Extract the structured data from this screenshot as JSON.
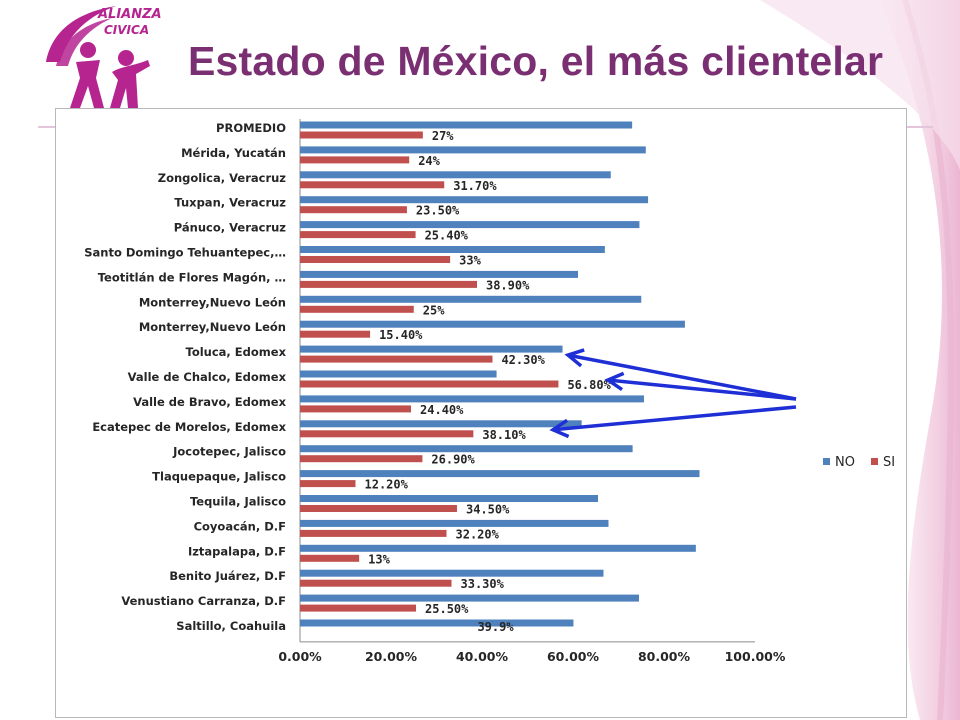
{
  "slide": {
    "title": "Estado de México, el más clientelar",
    "logo_text_line1": "ALIANZA",
    "logo_text_line2": "CIVICA",
    "accent_color": "#7a2f72",
    "logo_color": "#b5248f"
  },
  "chart_data": {
    "type": "bar",
    "orientation": "horizontal",
    "title": "",
    "xlabel": "",
    "ylabel": "",
    "xlim": [
      0,
      1
    ],
    "x_ticks": [
      "0.00%",
      "20.00%",
      "40.00%",
      "60.00%",
      "80.00%",
      "100.00%"
    ],
    "grid": false,
    "legend_position": "right",
    "categories": [
      "PROMEDIO",
      "Mérida, Yucatán",
      "Zongolica, Veracruz",
      "Tuxpan, Veracruz",
      "Pánuco, Veracruz",
      "Santo Domingo Tehuantepec,…",
      "Teotitlán de Flores Magón, …",
      "Monterrey,Nuevo León",
      "Monterrey,Nuevo León",
      "Toluca, Edomex",
      "Valle de Chalco, Edomex",
      "Valle de Bravo, Edomex",
      "Ecatepec de Morelos, Edomex",
      "Jocotepec, Jalisco",
      "Tlaquepaque, Jalisco",
      "Tequila, Jalisco",
      "Coyoacán, D.F",
      "Iztapalapa, D.F",
      "Benito Juárez, D.F",
      "Venustiano Carranza, D.F",
      "Saltillo, Coahuila"
    ],
    "series": [
      {
        "name": "NO",
        "color": "#4f81bd",
        "values": [
          0.73,
          0.76,
          0.683,
          0.765,
          0.746,
          0.67,
          0.611,
          0.75,
          0.846,
          0.577,
          0.432,
          0.756,
          0.619,
          0.731,
          0.878,
          0.655,
          0.678,
          0.87,
          0.667,
          0.745,
          0.601
        ]
      },
      {
        "name": "SI",
        "color": "#c0504d",
        "values": [
          0.27,
          0.24,
          0.317,
          0.235,
          0.254,
          0.33,
          0.389,
          0.25,
          0.154,
          0.423,
          0.568,
          0.244,
          0.381,
          0.269,
          0.122,
          0.345,
          0.322,
          0.13,
          0.333,
          0.255,
          null
        ],
        "labels": [
          "27%",
          "24%",
          "31.70%",
          "23.50%",
          "25.40%",
          "33%",
          "38.90%",
          "25%",
          "15.40%",
          "42.30%",
          "56.80%",
          "24.40%",
          "38.10%",
          "26.90%",
          "12.20%",
          "34.50%",
          "32.20%",
          "13%",
          "33.30%",
          "25.50%",
          "39.9%"
        ]
      }
    ],
    "annotations": [
      {
        "type": "arrow",
        "target": "Toluca, Edomex"
      },
      {
        "type": "arrow",
        "target": "Valle de Chalco, Edomex"
      },
      {
        "type": "arrow",
        "target": "Ecatepec de Morelos, Edomex"
      }
    ],
    "annotation_color": "#1f2fd6"
  }
}
